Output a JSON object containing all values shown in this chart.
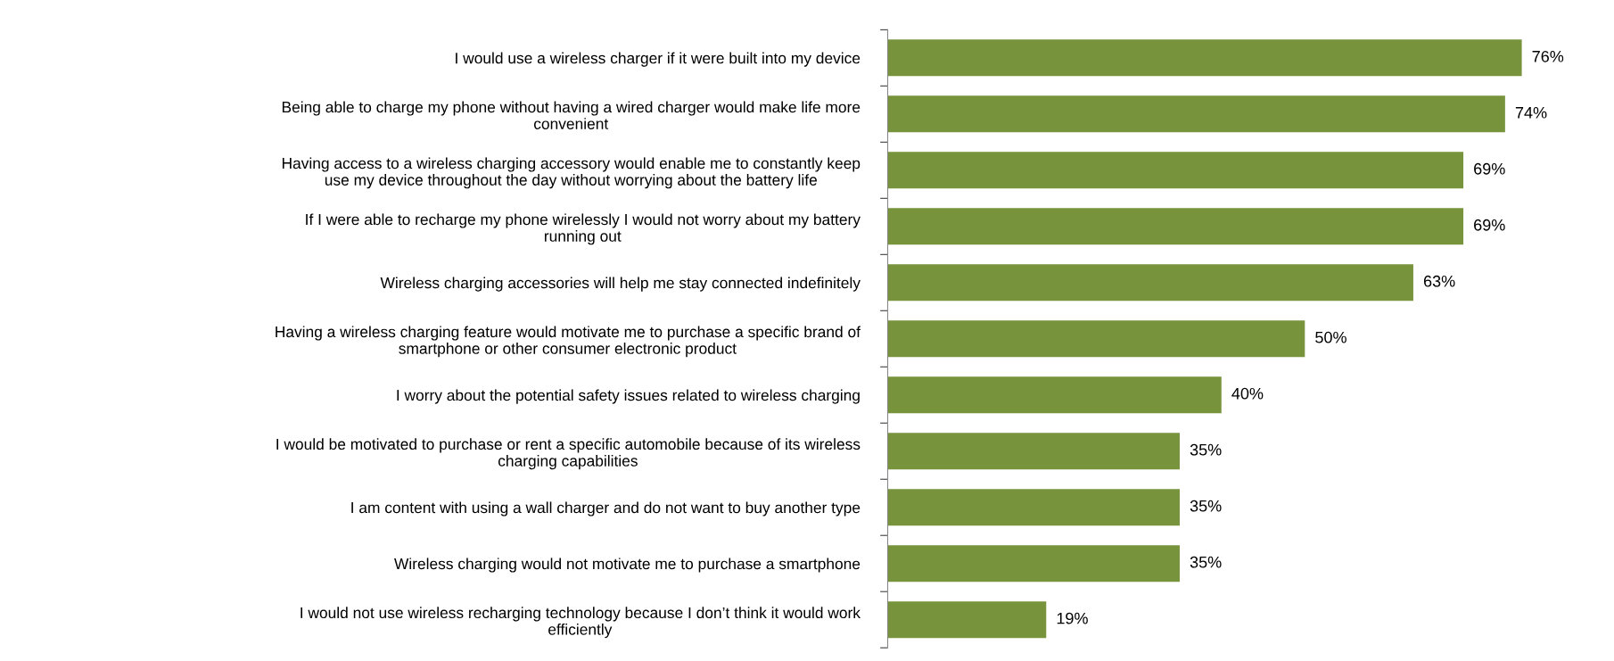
{
  "chart_data": {
    "type": "bar",
    "orientation": "horizontal",
    "data_labels": true,
    "categories": [
      "I would use a wireless charger if it were built into my device",
      "Being able to charge my phone without having a wired charger would make life more\nconvenient",
      "Having access to a wireless charging accessory would enable me to constantly keep\nuse my device throughout the day without worrying about the battery life",
      "If I were able to recharge my phone wirelessly I would not worry about my battery\nrunning out",
      "Wireless charging accessories will help me stay connected indefinitely",
      "Having a wireless charging feature would motivate me to purchase a specific brand of\nsmartphone or other consumer electronic product",
      "I worry about the potential safety issues related to wireless charging",
      "I would be motivated to purchase or rent a specific automobile because of its wireless\ncharging capabilities",
      "I am content with using a wall charger and do not want to buy another type",
      "Wireless charging would not motivate me to purchase a smartphone",
      "I would not use wireless recharging technology because I don’t think it would work\nefficiently"
    ],
    "values": [
      76,
      74,
      69,
      69,
      63,
      50,
      40,
      35,
      35,
      35,
      19
    ],
    "value_labels": [
      "76%",
      "74%",
      "69%",
      "69%",
      "63%",
      "50%",
      "40%",
      "35%",
      "35%",
      "35%",
      "19%"
    ],
    "color": "#77933c",
    "grid": false,
    "legend": false
  }
}
